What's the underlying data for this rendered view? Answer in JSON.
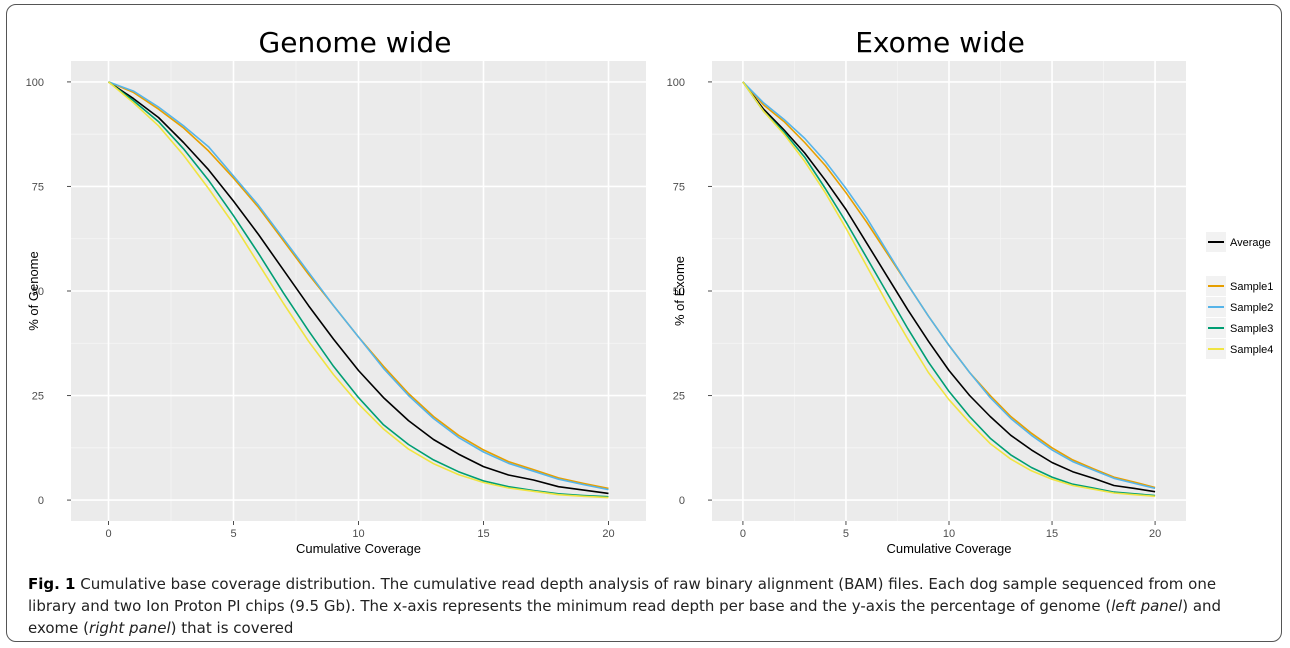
{
  "chart_data": [
    {
      "type": "line",
      "title": "Genome wide",
      "xlabel": "Cumulative Coverage",
      "ylabel": "% of Genome",
      "xlim": [
        -1.5,
        21.5
      ],
      "ylim": [
        -5,
        105
      ],
      "xticks": [
        0,
        5,
        10,
        15,
        20
      ],
      "yticks": [
        0,
        25,
        50,
        75,
        100
      ],
      "grid": true,
      "x": [
        0,
        1,
        2,
        3,
        4,
        5,
        6,
        7,
        8,
        9,
        10,
        11,
        12,
        13,
        14,
        15,
        16,
        17,
        18,
        19,
        20
      ],
      "series": [
        {
          "name": "Average",
          "color": "#000000",
          "values": [
            100,
            96,
            91.5,
            85.5,
            79,
            71.5,
            63.5,
            55,
            46.5,
            38.5,
            31,
            24.5,
            19,
            14.5,
            11,
            8,
            6,
            4.8,
            3.2,
            2.4,
            1.6
          ]
        },
        {
          "name": "Sample1",
          "color": "#E69F00",
          "values": [
            100,
            97.5,
            93.5,
            89,
            83.5,
            77,
            70,
            62,
            54,
            46.5,
            39,
            32,
            25.5,
            20,
            15.5,
            12,
            9.2,
            7.3,
            5.3,
            4,
            2.8
          ]
        },
        {
          "name": "Sample2",
          "color": "#56B4E9",
          "values": [
            100,
            97.8,
            94,
            89.5,
            84.5,
            77.5,
            70.5,
            62.5,
            54.5,
            46.5,
            39,
            31.5,
            25,
            19.5,
            15,
            11.5,
            8.8,
            6.9,
            5,
            3.7,
            2.5
          ]
        },
        {
          "name": "Sample3",
          "color": "#009E73",
          "values": [
            100,
            95.5,
            90.5,
            84,
            76.5,
            68,
            59,
            49.5,
            40.5,
            32,
            24.5,
            18,
            13.3,
            9.6,
            6.8,
            4.6,
            3.2,
            2.3,
            1.5,
            1.1,
            0.8
          ]
        },
        {
          "name": "Sample4",
          "color": "#F0E442",
          "values": [
            100,
            95,
            89.5,
            82.5,
            74.5,
            66,
            56.5,
            47,
            38,
            30,
            23,
            17,
            12.2,
            8.7,
            6.1,
            4.2,
            2.9,
            2.1,
            1.3,
            0.9,
            0.6
          ]
        }
      ]
    },
    {
      "type": "line",
      "title": "Exome wide",
      "xlabel": "Cumulative Coverage",
      "ylabel": "% of Exome",
      "xlim": [
        -1.5,
        21.5
      ],
      "ylim": [
        -5,
        105
      ],
      "xticks": [
        0,
        5,
        10,
        15,
        20
      ],
      "yticks": [
        0,
        25,
        50,
        75,
        100
      ],
      "grid": true,
      "legend": "right",
      "x": [
        0,
        1,
        2,
        3,
        4,
        5,
        6,
        7,
        8,
        9,
        10,
        11,
        12,
        13,
        14,
        15,
        16,
        17,
        18,
        19,
        20
      ],
      "series": [
        {
          "name": "Average",
          "color": "#000000",
          "values": [
            100,
            93.5,
            88.5,
            83,
            76.5,
            69.5,
            61.5,
            53.5,
            45.5,
            38,
            31,
            25,
            20,
            15.5,
            12,
            9,
            6.8,
            5.2,
            3.5,
            2.8,
            2
          ]
        },
        {
          "name": "Sample1",
          "color": "#E69F00",
          "values": [
            100,
            94.5,
            90.5,
            85.5,
            80,
            73.5,
            66.5,
            59,
            51.5,
            44,
            37,
            30.5,
            25,
            20,
            16,
            12.5,
            9.6,
            7.5,
            5.5,
            4.3,
            3
          ]
        },
        {
          "name": "Sample2",
          "color": "#56B4E9",
          "values": [
            100,
            95,
            91,
            86.5,
            81,
            74.5,
            67.5,
            59.5,
            51.5,
            44,
            37,
            30.5,
            24.5,
            19.5,
            15.5,
            12,
            9.2,
            7.2,
            5.2,
            4,
            2.8
          ]
        },
        {
          "name": "Sample3",
          "color": "#009E73",
          "values": [
            100,
            93,
            88,
            82,
            74.5,
            66.5,
            58,
            49.5,
            41,
            33,
            26,
            20,
            14.8,
            10.8,
            7.8,
            5.5,
            3.8,
            2.9,
            1.9,
            1.5,
            1.1
          ]
        },
        {
          "name": "Sample4",
          "color": "#F0E442",
          "values": [
            100,
            93,
            87.5,
            81,
            73.5,
            65,
            56,
            47,
            38.5,
            30.5,
            24,
            18.5,
            13.5,
            9.8,
            7,
            5,
            3.5,
            2.6,
            1.7,
            1.3,
            0.9
          ]
        }
      ]
    }
  ],
  "caption": {
    "label": "Fig. 1",
    "p1": " Cumulative base coverage distribution. The cumulative read depth analysis of raw binary alignment (BAM) files. Each dog sample sequenced from one library and two Ion Proton PI chips (9.5 Gb). The x-axis represents the minimum read depth per base and the y-axis the percentage of genome (",
    "left_panel": "left panel",
    "p2": ") and exome (",
    "right_panel": "right panel",
    "p3": ") that is covered"
  }
}
